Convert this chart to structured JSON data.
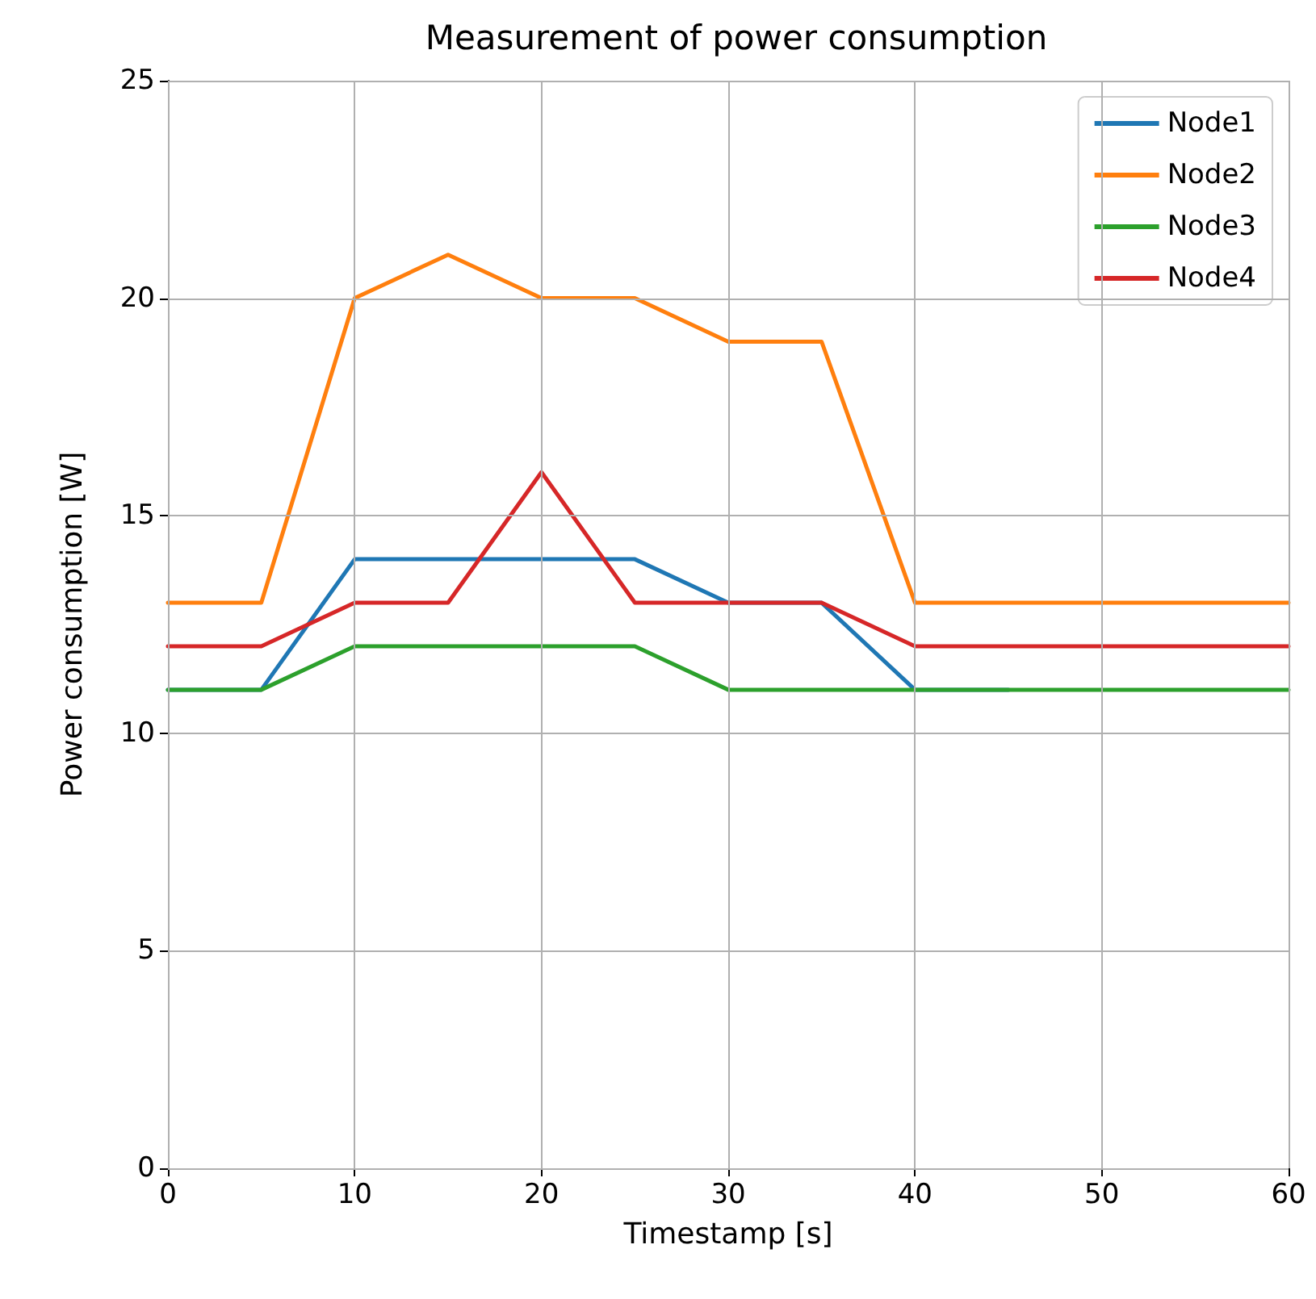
{
  "chart_data": {
    "type": "line",
    "title": "Measurement of power consumption",
    "xlabel": "Timestamp [s]",
    "ylabel": "Power consumption [W]",
    "x": [
      0,
      5,
      10,
      15,
      20,
      25,
      30,
      35,
      40,
      45,
      50,
      55,
      60
    ],
    "series": [
      {
        "name": "Node1",
        "color": "#1f77b4",
        "values": [
          11,
          11,
          14,
          14,
          14,
          14,
          13,
          13,
          11,
          11,
          null,
          null,
          null
        ]
      },
      {
        "name": "Node2",
        "color": "#ff7f0e",
        "values": [
          13,
          13,
          20,
          21,
          20,
          20,
          19,
          19,
          13,
          13,
          13,
          13,
          13
        ]
      },
      {
        "name": "Node3",
        "color": "#2ca02c",
        "values": [
          11,
          11,
          12,
          12,
          12,
          12,
          11,
          11,
          11,
          11,
          11,
          11,
          11
        ]
      },
      {
        "name": "Node4",
        "color": "#d62728",
        "values": [
          12,
          12,
          13,
          13,
          16,
          13,
          13,
          13,
          12,
          12,
          12,
          12,
          12
        ]
      }
    ],
    "xlim": [
      0,
      60
    ],
    "xticks": [
      0,
      10,
      20,
      30,
      40,
      50,
      60
    ],
    "ylim": [
      0,
      25
    ],
    "yticks": [
      0,
      5,
      10,
      15,
      20,
      25
    ],
    "grid": true,
    "legend": "top right",
    "marker": "none",
    "line_style": "solid"
  }
}
